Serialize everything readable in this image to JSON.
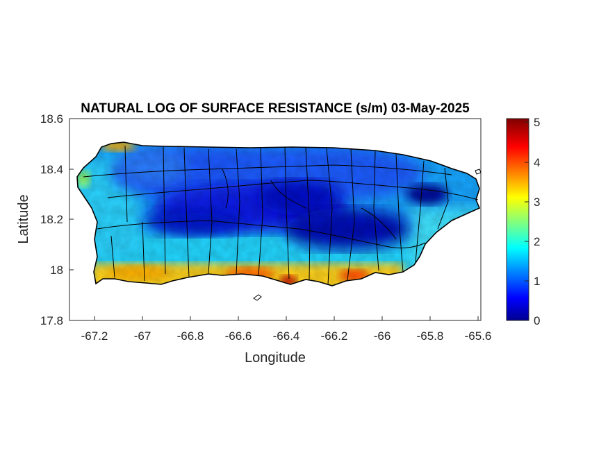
{
  "map": {
    "title": "NATURAL LOG OF SURFACE RESISTANCE (s/m) 03-May-2025",
    "xlabel": "Longitude",
    "ylabel": "Latitude",
    "x_ticks": [
      "-67.2",
      "-67",
      "-66.8",
      "-66.6",
      "-66.4",
      "-66.2",
      "-66",
      "-65.8",
      "-65.6"
    ],
    "y_ticks": [
      "18.6",
      "18.4",
      "18.2",
      "18"
    ],
    "y_tick_bottom": "17.8",
    "xlim": [
      -67.3,
      -65.58
    ],
    "ylim": [
      17.8,
      18.6
    ],
    "region": "Puerto Rico",
    "colormap": "jet",
    "colorbar": {
      "range": [
        0,
        5.15
      ],
      "ticks": [
        "5",
        "4",
        "3",
        "2",
        "1",
        "0"
      ]
    },
    "colors": {
      "low": "#00008f",
      "mid": "#00ffff",
      "high": "#800000",
      "outline": "#000000"
    }
  }
}
